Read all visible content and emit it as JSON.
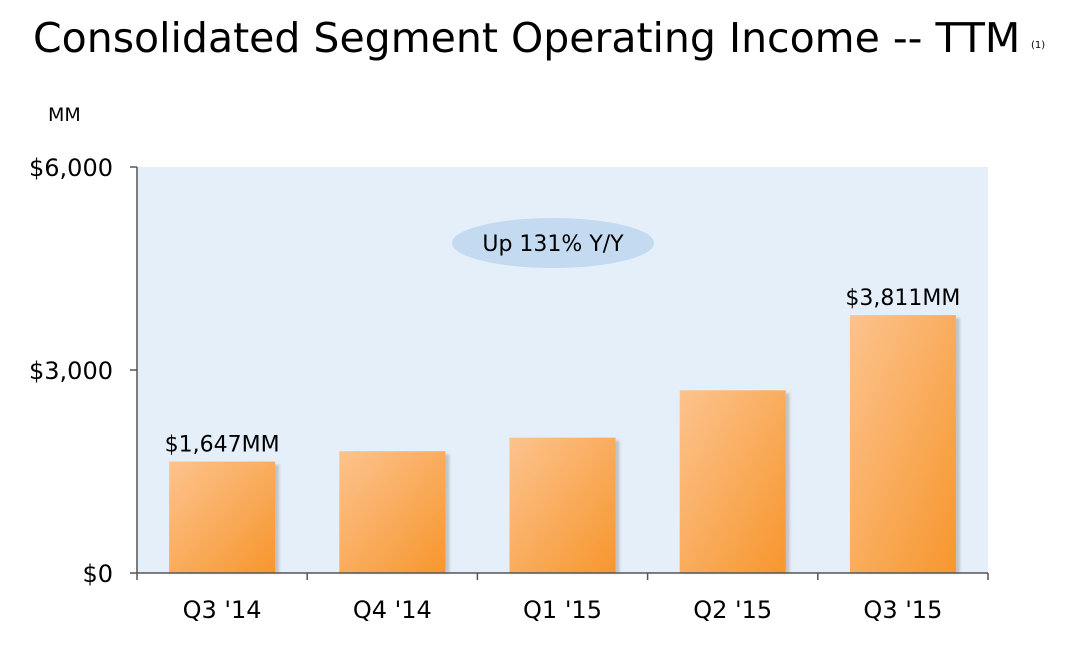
{
  "chart_data": {
    "type": "bar",
    "title": "Consolidated Segment Operating Income -- TTM",
    "title_footnote": "(1)",
    "unit_label": "MM",
    "categories": [
      "Q3 '14",
      "Q4 '14",
      "Q1 '15",
      "Q2 '15",
      "Q3 '15"
    ],
    "values": [
      1647,
      1800,
      2000,
      2700,
      3811
    ],
    "ylim": [
      0,
      6000
    ],
    "yticks": [
      0,
      3000,
      6000
    ],
    "ytick_labels": [
      "$0",
      "$3,000",
      "$6,000"
    ],
    "data_labels": [
      {
        "index": 0,
        "text": "$1,647MM"
      },
      {
        "index": 4,
        "text": "$3,811MM"
      }
    ],
    "annotation": "Up 131% Y/Y",
    "xlabel": "",
    "ylabel": "MM",
    "grid": false
  },
  "colors": {
    "plot_background": "#e5effa",
    "bar_light": "#fcc38e",
    "bar_dark": "#f7962d",
    "bar_shadow": "#b5b5b5",
    "callout_fill": "#c3daf0",
    "axis": "#555555"
  }
}
